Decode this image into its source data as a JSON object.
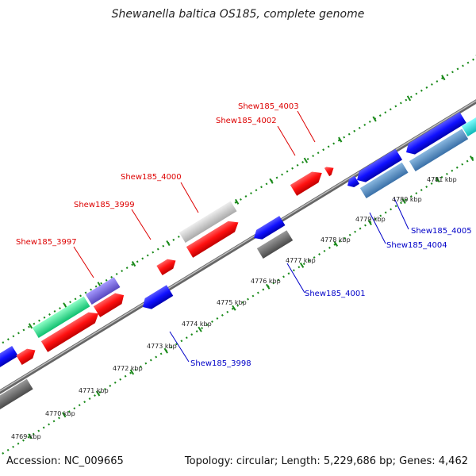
{
  "title": "Shewanella baltica OS185, complete genome",
  "footer": {
    "accession": "Accession: NC_009665",
    "topology": "Topology: circular; Length: 5,229,686 bp; Genes: 4,462"
  },
  "colors": {
    "background": "#ffffff",
    "backbone": "#7a7a7a",
    "ring_dots": "#1a8a1a",
    "red_gene": "#ff1010",
    "blue_gene": "#1010ff",
    "label_red": "#dd0000",
    "label_blue": "#0000c8",
    "light_gray": "#c8c8c8",
    "dark_gray": "#6a6a6a",
    "steel_blue": "#4a86c0",
    "mint": "#22ee88",
    "lavender": "#7a6ad8",
    "cyan": "#22dddd"
  },
  "kbp_ticks": [
    "4769 kbp",
    "4770 kbp",
    "4771 kbp",
    "4772 kbp",
    "4773 kbp",
    "4774 kbp",
    "4775 kbp",
    "4776 kbp",
    "4777 kbp",
    "4778 kbp",
    "4779 kbp",
    "4780 kbp",
    "4781 kbp"
  ],
  "gene_labels": {
    "top": [
      "Shew185_3997",
      "Shew185_3999",
      "Shew185_4000",
      "Shew185_4002",
      "Shew185_4003"
    ],
    "bottom": [
      "Shew185_3998",
      "Shew185_4001",
      "Shew185_4004",
      "Shew185_4005"
    ]
  }
}
